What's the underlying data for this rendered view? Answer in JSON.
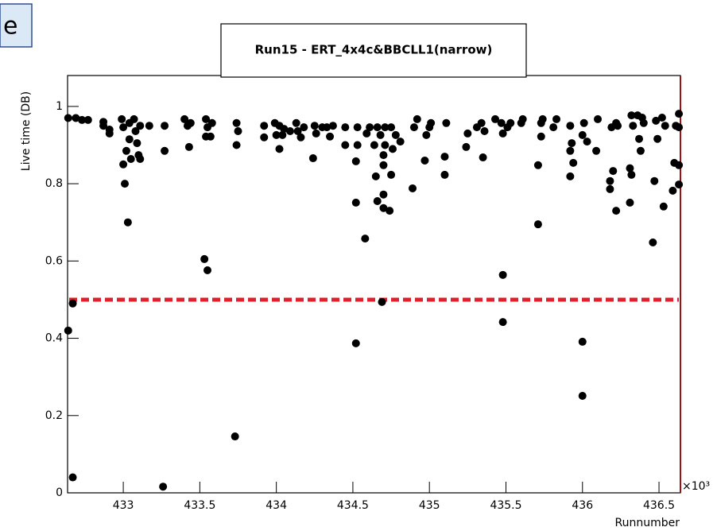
{
  "slide_fragment": "e",
  "chart_data": {
    "type": "scatter",
    "title": "Run15 - ERT_4x4c&BBCLL1(narrow)",
    "x_label": "Runnumber",
    "y_label": "Live time (DB)",
    "x_multiplier": "×10³",
    "xlim": [
      432.636,
      436.64
    ],
    "ylim": [
      0,
      1.08
    ],
    "xticks": [
      433,
      433.5,
      434,
      434.5,
      435,
      435.5,
      436,
      436.5
    ],
    "yticks": [
      0,
      0.2,
      0.4,
      0.6,
      0.8,
      1
    ],
    "reference_line": 0.5,
    "reference_color": "#e0202c",
    "series": [
      {
        "color": "#000000",
        "x": [
          432.64,
          432.67,
          432.67,
          432.64,
          432.69,
          432.73,
          432.77,
          432.87,
          432.87,
          432.91,
          432.91,
          432.99,
          433.0,
          433.0,
          433.01,
          433.02,
          433.03,
          433.04,
          433.04,
          433.05,
          433.07,
          433.08,
          433.09,
          433.1,
          433.11,
          433.11,
          433.17,
          433.26,
          433.27,
          433.27,
          433.4,
          433.42,
          433.43,
          433.44,
          433.53,
          433.55,
          433.54,
          433.55,
          433.54,
          433.57,
          433.58,
          433.73,
          433.74,
          433.74,
          433.75,
          433.92,
          433.92,
          433.99,
          434.0,
          434.02,
          434.02,
          434.04,
          434.05,
          434.09,
          434.13,
          434.14,
          434.16,
          434.18,
          434.24,
          434.25,
          434.26,
          434.3,
          434.33,
          434.35,
          434.37,
          434.45,
          434.45,
          434.52,
          434.52,
          434.52,
          434.53,
          434.53,
          434.58,
          434.59,
          434.61,
          434.64,
          434.65,
          434.66,
          434.66,
          434.68,
          434.69,
          434.7,
          434.7,
          434.7,
          434.7,
          434.71,
          434.71,
          434.74,
          434.75,
          434.75,
          434.76,
          434.78,
          434.81,
          434.89,
          434.9,
          434.92,
          434.97,
          434.98,
          435.0,
          435.01,
          435.1,
          435.1,
          435.11,
          435.24,
          435.25,
          435.31,
          435.34,
          435.35,
          435.36,
          435.43,
          435.47,
          435.48,
          435.48,
          435.48,
          435.51,
          435.53,
          435.6,
          435.61,
          435.71,
          435.71,
          435.73,
          435.73,
          435.74,
          435.81,
          435.83,
          435.92,
          435.92,
          435.92,
          435.93,
          435.94,
          436.0,
          436.0,
          436.0,
          436.01,
          436.03,
          436.09,
          436.1,
          436.18,
          436.18,
          436.19,
          436.2,
          436.22,
          436.22,
          436.23,
          436.31,
          436.31,
          436.32,
          436.32,
          436.33,
          436.36,
          436.37,
          436.38,
          436.39,
          436.4,
          436.46,
          436.47,
          436.48,
          436.49,
          436.52,
          436.53,
          436.54,
          436.59,
          436.6,
          436.61,
          436.63,
          436.63,
          436.63,
          436.63
        ],
        "values": [
          0.42,
          0.49,
          0.04,
          0.97,
          0.97,
          0.965,
          0.965,
          0.96,
          0.95,
          0.94,
          0.93,
          0.967,
          0.946,
          0.85,
          0.8,
          0.885,
          0.7,
          0.915,
          0.957,
          0.864,
          0.967,
          0.936,
          0.905,
          0.874,
          0.95,
          0.864,
          0.95,
          0.016,
          0.95,
          0.885,
          0.967,
          0.95,
          0.895,
          0.957,
          0.605,
          0.576,
          0.967,
          0.946,
          0.922,
          0.922,
          0.957,
          0.146,
          0.957,
          0.9,
          0.936,
          0.95,
          0.92,
          0.957,
          0.926,
          0.95,
          0.89,
          0.926,
          0.942,
          0.936,
          0.957,
          0.936,
          0.92,
          0.946,
          0.866,
          0.95,
          0.93,
          0.946,
          0.946,
          0.922,
          0.95,
          0.946,
          0.9,
          0.387,
          0.751,
          0.858,
          0.9,
          0.946,
          0.658,
          0.93,
          0.946,
          0.9,
          0.819,
          0.755,
          0.946,
          0.926,
          0.494,
          0.737,
          0.772,
          0.874,
          0.848,
          0.946,
          0.9,
          0.73,
          0.946,
          0.823,
          0.89,
          0.926,
          0.909,
          0.788,
          0.946,
          0.967,
          0.86,
          0.926,
          0.946,
          0.957,
          0.823,
          0.87,
          0.957,
          0.895,
          0.93,
          0.946,
          0.957,
          0.868,
          0.936,
          0.967,
          0.957,
          0.442,
          0.564,
          0.93,
          0.946,
          0.957,
          0.957,
          0.967,
          0.695,
          0.848,
          0.922,
          0.957,
          0.967,
          0.946,
          0.967,
          0.885,
          0.95,
          0.819,
          0.905,
          0.854,
          0.251,
          0.391,
          0.926,
          0.957,
          0.909,
          0.885,
          0.967,
          0.786,
          0.807,
          0.946,
          0.833,
          0.957,
          0.73,
          0.95,
          0.751,
          0.84,
          0.823,
          0.977,
          0.95,
          0.977,
          0.916,
          0.885,
          0.971,
          0.957,
          0.648,
          0.807,
          0.963,
          0.916,
          0.971,
          0.741,
          0.95,
          0.782,
          0.854,
          0.95,
          0.981,
          0.946,
          0.848,
          0.798
        ]
      }
    ]
  }
}
